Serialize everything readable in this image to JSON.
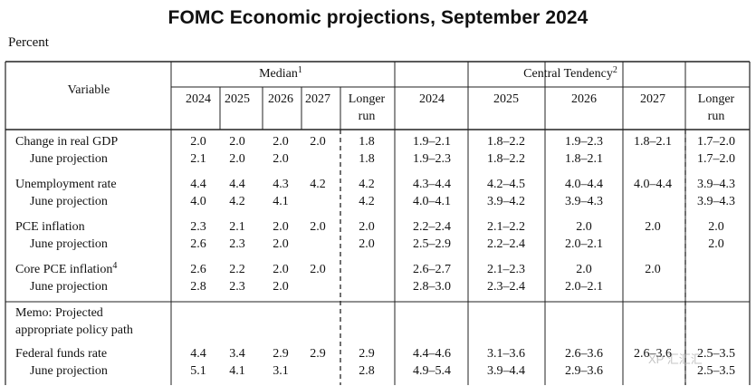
{
  "title": "FOMC Economic projections, September 2024",
  "unit_label": "Percent",
  "header": {
    "variable": "Variable",
    "median_group": "Median",
    "median_sup": "1",
    "ct_group": "Central Tendency",
    "ct_sup": "2",
    "years": [
      "2024",
      "2025",
      "2026",
      "2027"
    ],
    "longer_run": [
      "Longer",
      "run"
    ]
  },
  "rows": [
    {
      "label": "Change in real GDP",
      "median": [
        "2.0",
        "2.0",
        "2.0",
        "2.0",
        "1.8"
      ],
      "ct": [
        "1.9–2.1",
        "1.8–2.2",
        "1.9–2.3",
        "1.8–2.1",
        "1.7–2.0"
      ]
    },
    {
      "label": "June projection",
      "indent": true,
      "median": [
        "2.1",
        "2.0",
        "2.0",
        "",
        "1.8"
      ],
      "ct": [
        "1.9–2.3",
        "1.8–2.2",
        "1.8–2.1",
        "",
        "1.7–2.0"
      ]
    },
    {
      "label": "Unemployment rate",
      "median": [
        "4.4",
        "4.4",
        "4.3",
        "4.2",
        "4.2"
      ],
      "ct": [
        "4.3–4.4",
        "4.2–4.5",
        "4.0–4.4",
        "4.0–4.4",
        "3.9–4.3"
      ]
    },
    {
      "label": "June projection",
      "indent": true,
      "median": [
        "4.0",
        "4.2",
        "4.1",
        "",
        "4.2"
      ],
      "ct": [
        "4.0–4.1",
        "3.9–4.2",
        "3.9–4.3",
        "",
        "3.9–4.3"
      ]
    },
    {
      "label": "PCE inflation",
      "median": [
        "2.3",
        "2.1",
        "2.0",
        "2.0",
        "2.0"
      ],
      "ct": [
        "2.2–2.4",
        "2.1–2.2",
        "2.0",
        "2.0",
        "2.0"
      ]
    },
    {
      "label": "June projection",
      "indent": true,
      "median": [
        "2.6",
        "2.3",
        "2.0",
        "",
        "2.0"
      ],
      "ct": [
        "2.5–2.9",
        "2.2–2.4",
        "2.0–2.1",
        "",
        "2.0"
      ]
    },
    {
      "label": "Core PCE inflation",
      "sup": "4",
      "median": [
        "2.6",
        "2.2",
        "2.0",
        "2.0",
        ""
      ],
      "ct": [
        "2.6–2.7",
        "2.1–2.3",
        "2.0",
        "2.0",
        ""
      ]
    },
    {
      "label": "June projection",
      "indent": true,
      "median": [
        "2.8",
        "2.3",
        "2.0",
        "",
        ""
      ],
      "ct": [
        "2.8–3.0",
        "2.3–2.4",
        "2.0–2.1",
        "",
        ""
      ]
    },
    {
      "label": "Federal funds rate",
      "median": [
        "4.4",
        "3.4",
        "2.9",
        "2.9",
        "2.9"
      ],
      "ct": [
        "4.4–4.6",
        "3.1–3.6",
        "2.6–3.6",
        "2.6–3.6",
        "2.5–3.5"
      ]
    },
    {
      "label": "June projection",
      "indent": true,
      "median": [
        "5.1",
        "4.1",
        "3.1",
        "",
        "2.8"
      ],
      "ct": [
        "4.9–5.4",
        "3.9–4.4",
        "2.9–3.6",
        "",
        "2.5–3.5"
      ]
    }
  ],
  "memo": [
    "Memo: Projected",
    "appropriate policy path"
  ],
  "watermark": "XP 汇汇汇"
}
